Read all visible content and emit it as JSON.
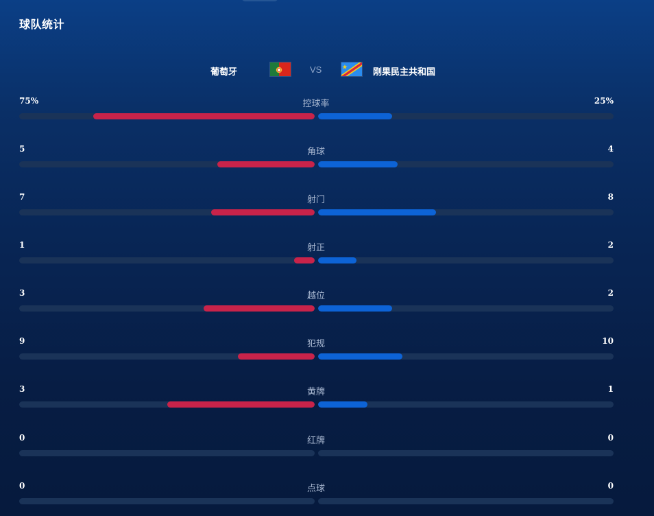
{
  "section": {
    "title": "球队统计"
  },
  "match": {
    "home_team": "葡萄牙",
    "away_team": "刚果民主共和国",
    "vs": "VS",
    "home_flag_icon": "portugal-flag-icon",
    "away_flag_icon": "dr-congo-flag-icon"
  },
  "colors": {
    "home_bar": "#c8234a",
    "away_bar": "#0d63d6",
    "track": "#1a3358"
  },
  "stats": [
    {
      "label": "控球率",
      "home": "75%",
      "away": "25%",
      "home_fill": 0.75,
      "away_fill": 0.25
    },
    {
      "label": "角球",
      "home": "5",
      "away": "4",
      "home_fill": 0.33,
      "away_fill": 0.27
    },
    {
      "label": "射门",
      "home": "7",
      "away": "8",
      "home_fill": 0.35,
      "away_fill": 0.4
    },
    {
      "label": "射正",
      "home": "1",
      "away": "2",
      "home_fill": 0.07,
      "away_fill": 0.13
    },
    {
      "label": "越位",
      "home": "3",
      "away": "2",
      "home_fill": 0.375,
      "away_fill": 0.25
    },
    {
      "label": "犯规",
      "home": "9",
      "away": "10",
      "home_fill": 0.26,
      "away_fill": 0.285
    },
    {
      "label": "黄牌",
      "home": "3",
      "away": "1",
      "home_fill": 0.5,
      "away_fill": 0.167
    },
    {
      "label": "红牌",
      "home": "0",
      "away": "0",
      "home_fill": 0,
      "away_fill": 0
    },
    {
      "label": "点球",
      "home": "0",
      "away": "0",
      "home_fill": 0,
      "away_fill": 0
    }
  ]
}
